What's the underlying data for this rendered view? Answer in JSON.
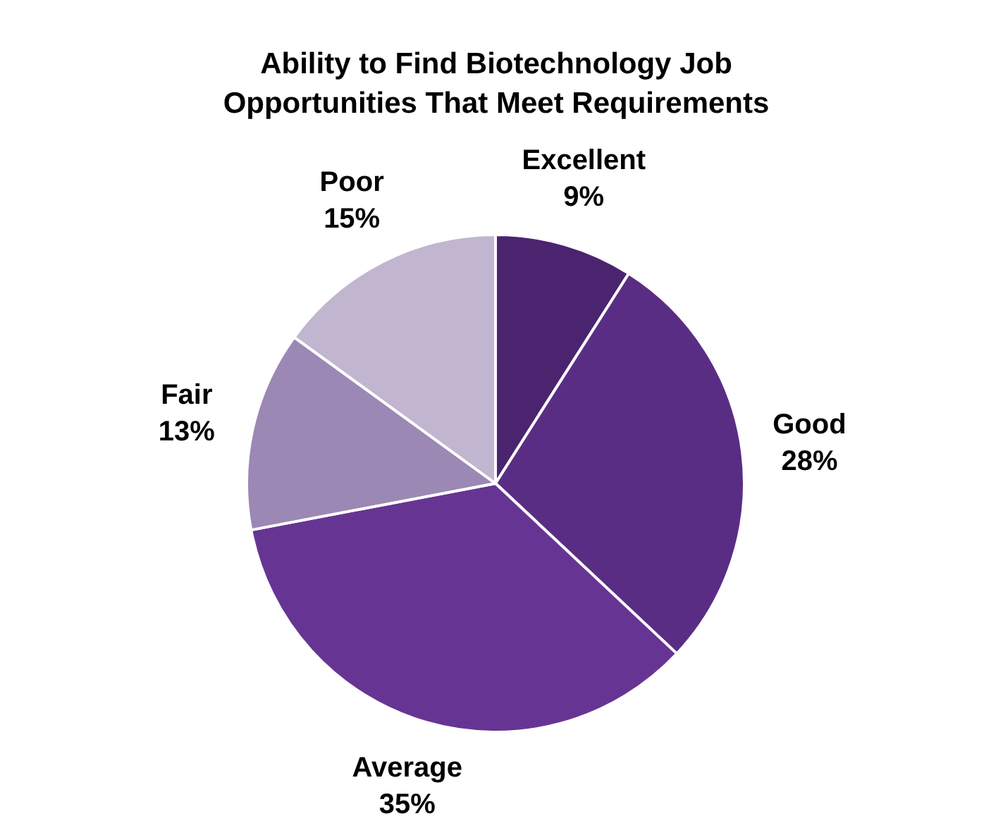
{
  "chart_data": {
    "type": "pie",
    "title": "Ability to Find Biotechnology Job Opportunities That Meet Requirements",
    "categories": [
      "Excellent",
      "Good",
      "Average",
      "Fair",
      "Poor"
    ],
    "values": [
      9,
      28,
      35,
      13,
      15
    ],
    "value_labels": [
      "9%",
      "28%",
      "35%",
      "13%",
      "15%"
    ],
    "colors": [
      "#4b2470",
      "#5a2d85",
      "#663593",
      "#9b88b4",
      "#c1b5cf"
    ],
    "legend": false
  }
}
